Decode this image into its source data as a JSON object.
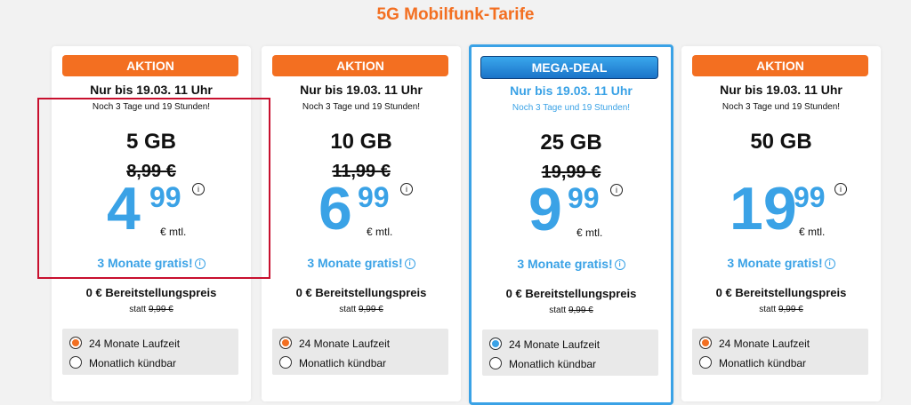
{
  "page_title": "5G Mobilfunk-Tarife",
  "colors": {
    "orange": "#f36f21",
    "blue": "#3aa2e6",
    "red_highlight": "#c8102e"
  },
  "tariffs": [
    {
      "badge": "AKTION",
      "until": "Nur bis 19.03. 11 Uhr",
      "timer": "Noch 3 Tage und 19 Stunden!",
      "data": "5 GB",
      "old_price": "8,99 €",
      "price_main": "4",
      "price_cents": "99",
      "unit": "€ mtl.",
      "gratis": "3 Monate gratis!",
      "provision": "0 € Bereitstellungspreis",
      "statt_label": "statt",
      "statt_value": "9,99 €",
      "options": [
        "24 Monate Laufzeit",
        "Monatlich kündbar"
      ]
    },
    {
      "badge": "AKTION",
      "until": "Nur bis 19.03. 11 Uhr",
      "timer": "Noch 3 Tage und 19 Stunden!",
      "data": "10 GB",
      "old_price": "11,99 €",
      "price_main": "6",
      "price_cents": "99",
      "unit": "€ mtl.",
      "gratis": "3 Monate gratis!",
      "provision": "0 € Bereitstellungspreis",
      "statt_label": "statt",
      "statt_value": "9,99 €",
      "options": [
        "24 Monate Laufzeit",
        "Monatlich kündbar"
      ]
    },
    {
      "badge": "MEGA-DEAL",
      "until": "Nur bis 19.03. 11 Uhr",
      "timer": "Noch 3 Tage und 19 Stunden!",
      "data": "25 GB",
      "old_price": "19,99 €",
      "price_main": "9",
      "price_cents": "99",
      "unit": "€ mtl.",
      "gratis": "3 Monate gratis!",
      "provision": "0 € Bereitstellungspreis",
      "statt_label": "statt",
      "statt_value": "9,99 €",
      "options": [
        "24 Monate Laufzeit",
        "Monatlich kündbar"
      ]
    },
    {
      "badge": "AKTION",
      "until": "Nur bis 19.03. 11 Uhr",
      "timer": "Noch 3 Tage und 19 Stunden!",
      "data": "50 GB",
      "old_price": "",
      "price_main": "19",
      "price_cents": "99",
      "unit": "€ mtl.",
      "gratis": "3 Monate gratis!",
      "provision": "0 € Bereitstellungspreis",
      "statt_label": "statt",
      "statt_value": "9,99 €",
      "options": [
        "24 Monate Laufzeit",
        "Monatlich kündbar"
      ]
    }
  ]
}
